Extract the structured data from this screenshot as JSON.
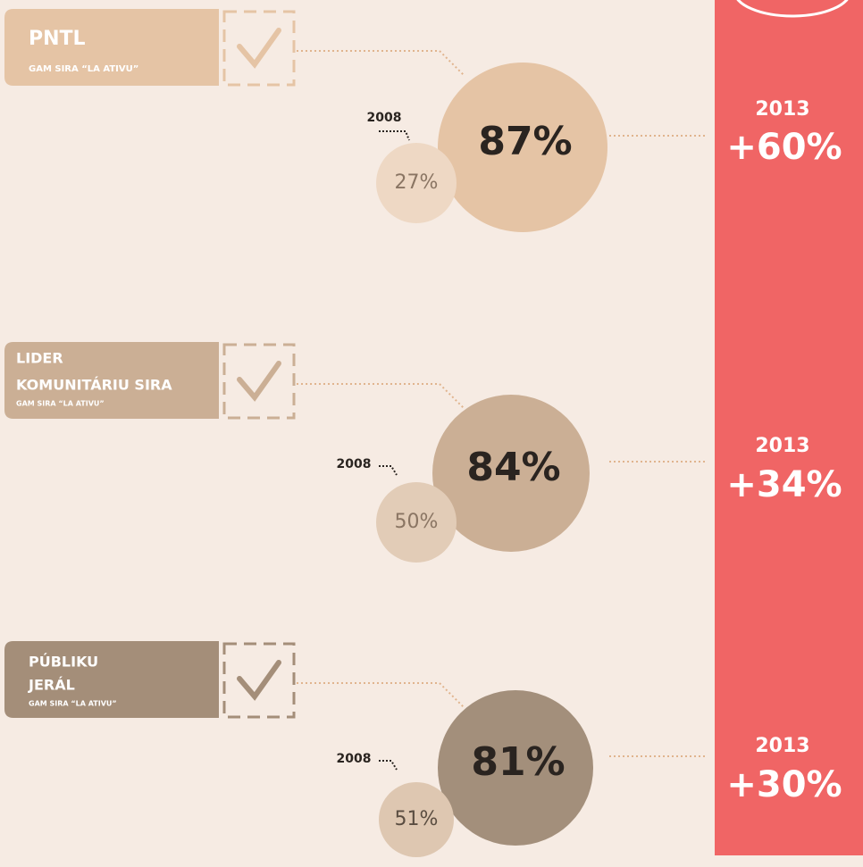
{
  "sections": [
    {
      "title": [
        "PNTL"
      ],
      "subtitle": "GAM SIRA “LA ATIVU”",
      "year_before": "2008",
      "before": "27%",
      "after": "87%",
      "change_year": "2013",
      "change": "+60%"
    },
    {
      "title": [
        "LIDER",
        "KOMUNITÁRIU SIRA"
      ],
      "subtitle": "GAM SIRA “LA ATIVU”",
      "year_before": "2008",
      "before": "50%",
      "after": "84%",
      "change_year": "2013",
      "change": "+34%"
    },
    {
      "title": [
        "PÚBLIKU",
        "JERÁL"
      ],
      "subtitle": "GAM SIRA “LA ATIVU”",
      "year_before": "2008",
      "before": "51%",
      "after": "81%",
      "change_year": "2013",
      "change": "+30%"
    }
  ]
}
